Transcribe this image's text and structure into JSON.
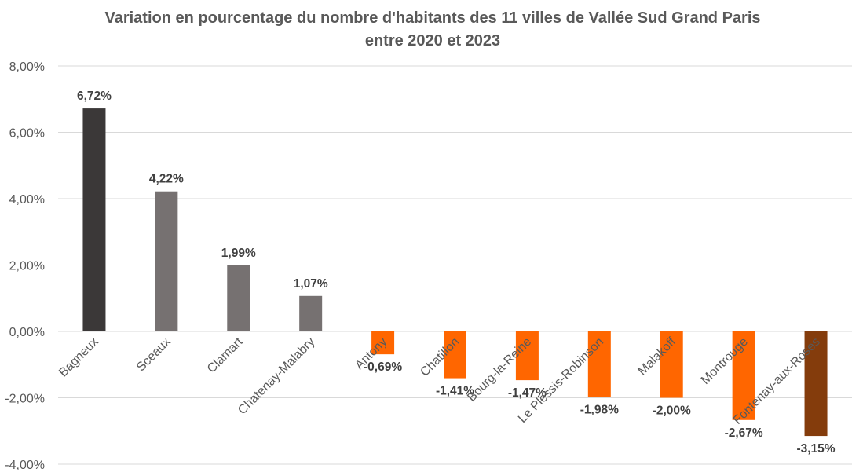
{
  "chart_data": {
    "type": "bar",
    "title": "Variation en pourcentage du nombre d'habitants des 11 villes de Vallée Sud Grand Paris",
    "subtitle": "entre 2020 et 2023",
    "xlabel": "",
    "ylabel": "",
    "ylim": [
      -4,
      8
    ],
    "y_ticks": [
      8,
      6,
      4,
      2,
      0,
      -2,
      -4
    ],
    "y_tick_labels": [
      "8,00%",
      "6,00%",
      "4,00%",
      "2,00%",
      "0,00%",
      "-2,00%",
      "-4,00%"
    ],
    "grid": true,
    "legend": "none",
    "categories": [
      "Bagneux",
      "Sceaux",
      "Clamart",
      "Chatenay-Malabry",
      "Antony",
      "Chatillon",
      "Bourg-la-Reine",
      "Le Plessis-Robinson",
      "Malakoff",
      "Montrouge",
      "Fontenay-aux-Roses"
    ],
    "values": [
      6.72,
      4.22,
      1.99,
      1.07,
      -0.69,
      -1.41,
      -1.47,
      -1.98,
      -2.0,
      -2.67,
      -3.15
    ],
    "data_labels": [
      "6,72%",
      "4,22%",
      "1,99%",
      "1,07%",
      "-0,69%",
      "-1,41%",
      "-1,47%",
      "-1,98%",
      "-2,00%",
      "-2,67%",
      "-3,15%"
    ],
    "colors": [
      "#3b3838",
      "#767171",
      "#767171",
      "#767171",
      "#ff6600",
      "#ff6600",
      "#ff6600",
      "#ff6600",
      "#ff6600",
      "#ff6600",
      "#843c0c"
    ]
  }
}
